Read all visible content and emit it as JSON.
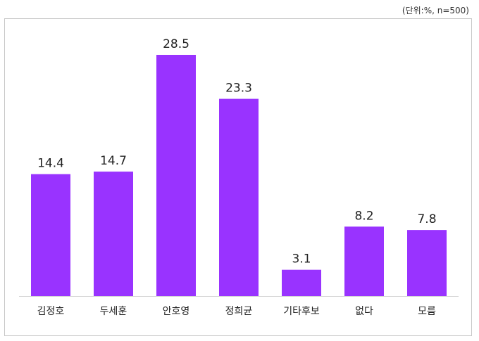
{
  "unit_note": "(단위:%, n=500)",
  "colors": {
    "bar": "#9933ff",
    "axis": "#d0d0d0",
    "text": "#222222"
  },
  "chart_data": {
    "type": "bar",
    "categories": [
      "김정호",
      "두세훈",
      "안호영",
      "정희균",
      "기타후보",
      "없다",
      "모름"
    ],
    "values": [
      14.4,
      14.7,
      28.5,
      23.3,
      3.1,
      8.2,
      7.8
    ],
    "value_labels": [
      "14.4",
      "14.7",
      "28.5",
      "23.3",
      "3.1",
      "8.2",
      "7.8"
    ],
    "title": "",
    "xlabel": "",
    "ylabel": "",
    "ylim": [
      0,
      28.5
    ],
    "grid": false,
    "legend": "none"
  }
}
